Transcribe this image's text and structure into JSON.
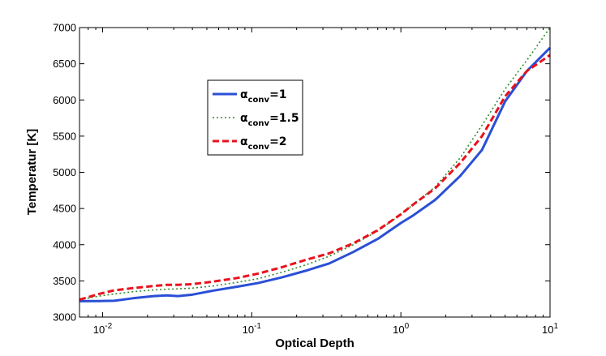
{
  "chart_data": {
    "type": "line",
    "title": "",
    "xlabel": "Optical Depth",
    "ylabel": "Temperatur [K]",
    "xscale": "log",
    "xlim": [
      0.007,
      10
    ],
    "ylim": [
      3000,
      7000
    ],
    "grid": false,
    "legend_position": "upper-center-left",
    "x_ticks": [
      {
        "value": 0.01,
        "base": "10",
        "exp": "-2"
      },
      {
        "value": 0.1,
        "base": "10",
        "exp": "-1"
      },
      {
        "value": 1,
        "base": "10",
        "exp": "0"
      },
      {
        "value": 10,
        "base": "10",
        "exp": "1"
      }
    ],
    "y_ticks": [
      3000,
      3500,
      4000,
      4500,
      5000,
      5500,
      6000,
      6500,
      7000
    ],
    "series": [
      {
        "name": "α_conv=1",
        "greek": "α",
        "sub": "conv",
        "suffix": "=1",
        "color": "#2a4fd6",
        "style": "solid",
        "x": [
          0.007,
          0.0095,
          0.012,
          0.016,
          0.022,
          0.027,
          0.032,
          0.04,
          0.055,
          0.08,
          0.11,
          0.16,
          0.23,
          0.33,
          0.48,
          0.7,
          1.0,
          1.2,
          1.7,
          2.5,
          3.5,
          5.0,
          7.0,
          10.0
        ],
        "y": [
          3220,
          3222,
          3225,
          3260,
          3290,
          3300,
          3290,
          3310,
          3365,
          3420,
          3470,
          3550,
          3640,
          3740,
          3900,
          4080,
          4300,
          4400,
          4620,
          4950,
          5310,
          5980,
          6400,
          6720
        ]
      },
      {
        "name": "α_conv=1.5",
        "greek": "α",
        "sub": "conv",
        "suffix": "=1.5",
        "color": "#2e8b2e",
        "style": "dotted",
        "x": [
          0.007,
          0.0095,
          0.012,
          0.016,
          0.022,
          0.027,
          0.032,
          0.04,
          0.055,
          0.08,
          0.11,
          0.16,
          0.23,
          0.33,
          0.48,
          0.7,
          1.0,
          1.2,
          1.7,
          2.5,
          3.5,
          5.0,
          7.0,
          10.0
        ],
        "y": [
          3240,
          3290,
          3320,
          3350,
          3375,
          3385,
          3390,
          3400,
          3430,
          3480,
          3530,
          3620,
          3720,
          3840,
          4000,
          4190,
          4420,
          4550,
          4800,
          5200,
          5650,
          6150,
          6550,
          7000
        ]
      },
      {
        "name": "α_conv=2",
        "greek": "α",
        "sub": "conv",
        "suffix": "=2",
        "color": "#e8121c",
        "style": "dashed",
        "x": [
          0.007,
          0.0095,
          0.012,
          0.016,
          0.022,
          0.027,
          0.032,
          0.04,
          0.055,
          0.08,
          0.11,
          0.16,
          0.23,
          0.33,
          0.48,
          0.7,
          1.0,
          1.2,
          1.7,
          2.5,
          3.5,
          5.0,
          7.0,
          10.0
        ],
        "y": [
          3240,
          3320,
          3370,
          3400,
          3430,
          3445,
          3445,
          3455,
          3490,
          3540,
          3600,
          3690,
          3790,
          3880,
          4020,
          4200,
          4420,
          4550,
          4780,
          5130,
          5500,
          6050,
          6400,
          6620
        ]
      }
    ]
  }
}
